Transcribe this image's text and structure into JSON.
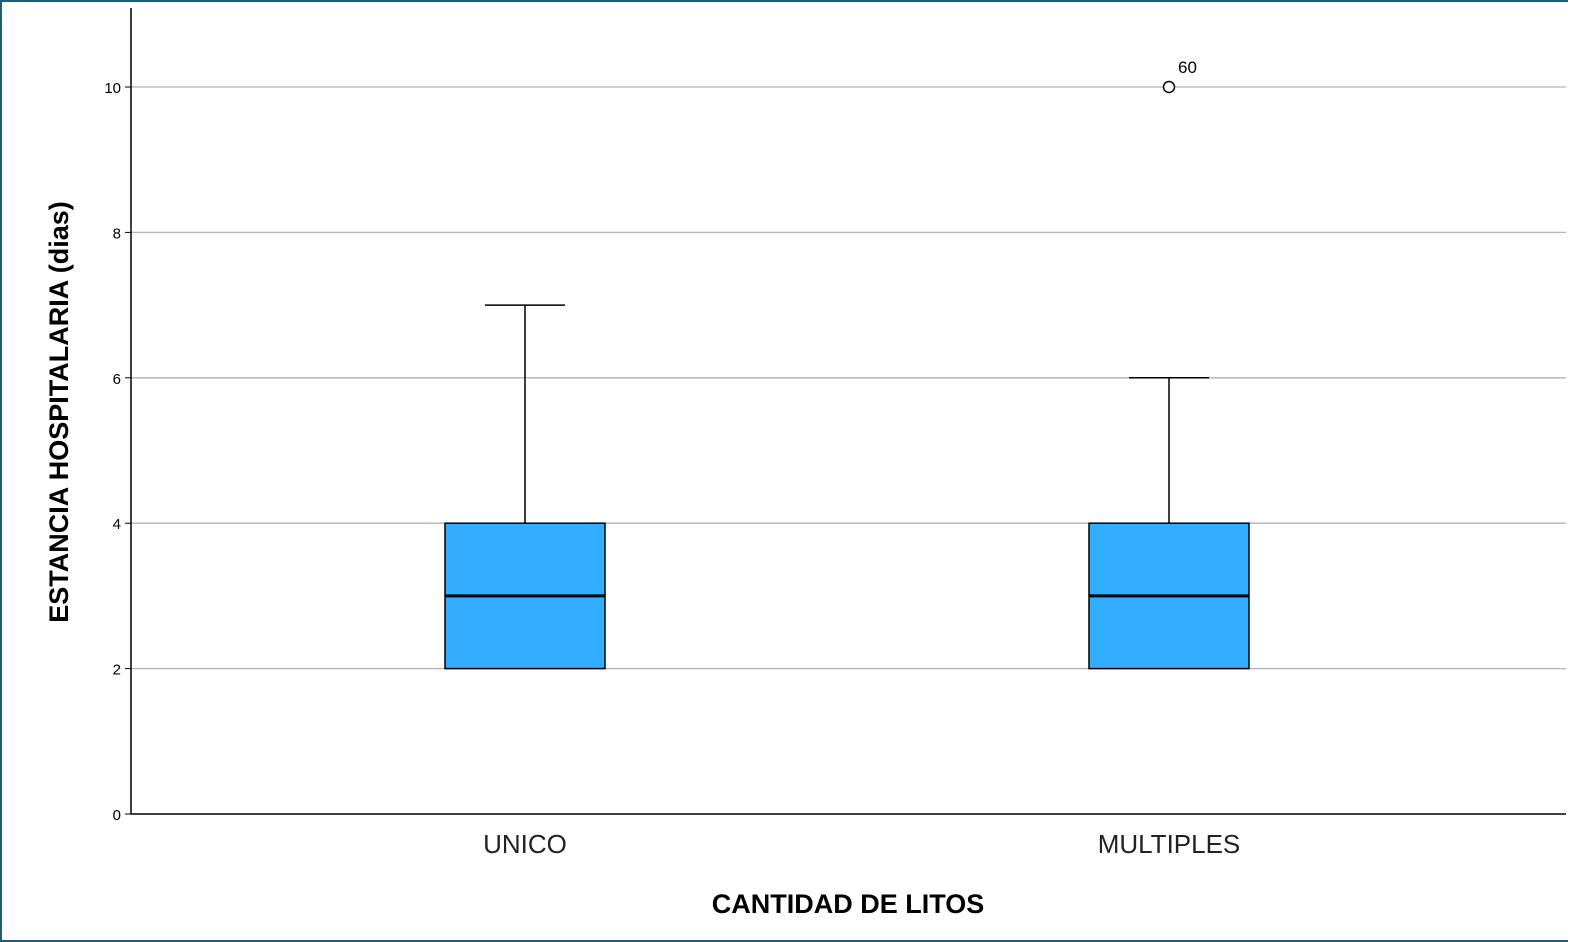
{
  "chart_data": {
    "type": "boxplot",
    "xlabel": "CANTIDAD DE LITOS",
    "ylabel": "ESTANCIA HOSPITALARIA (dias)",
    "ylim": [
      0,
      11
    ],
    "yticks": [
      "0",
      "2",
      "4",
      "6",
      "8",
      "10"
    ],
    "grid": true,
    "box_color": "#33adff",
    "categories": [
      "UNICO",
      "MULTIPLES"
    ],
    "boxes": [
      {
        "category": "UNICO",
        "whisker_low": 2,
        "q1": 2,
        "median": 3,
        "q3": 4,
        "whisker_high": 7,
        "outliers": []
      },
      {
        "category": "MULTIPLES",
        "whisker_low": 2,
        "q1": 2,
        "median": 3,
        "q3": 4,
        "whisker_high": 6,
        "outliers": [
          {
            "value": 10,
            "label": "60"
          }
        ]
      }
    ]
  }
}
